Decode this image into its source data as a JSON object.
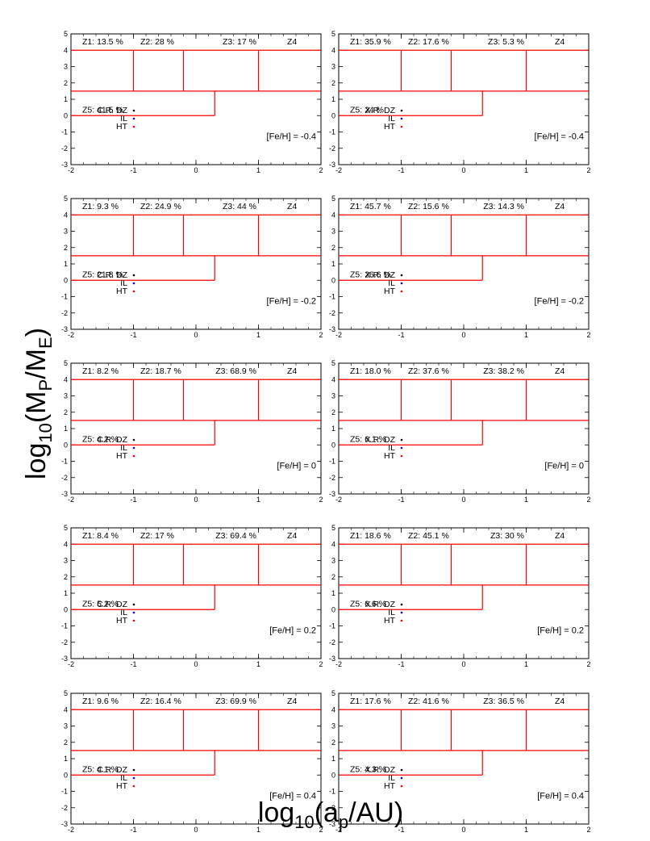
{
  "figure": {
    "xlabel": "log10(ap/AU)",
    "ylabel": "log10(MP/ME)",
    "xlabel_parts": {
      "base": "log",
      "sub1": "10",
      "mid": "(a",
      "sub2": "p",
      "tail": "/AU)"
    },
    "ylabel_parts": {
      "base": "log",
      "sub1": "10",
      "mid": "(M",
      "sub2": "P",
      "mid2": "/M",
      "sub3": "E",
      "tail": ")"
    }
  },
  "colors": {
    "dz": "#000000",
    "il": "#0000ff",
    "ht": "#ff0000",
    "bg": "#999999",
    "zone": "#ff0000"
  },
  "chart_data": {
    "type": "scatter",
    "xlim": [
      -2,
      2
    ],
    "ylim": [
      -3,
      5
    ],
    "xticks": [
      -2,
      -1,
      0,
      1,
      2
    ],
    "yticks": [
      -3,
      -2,
      -1,
      0,
      1,
      2,
      3,
      4,
      5
    ],
    "zone_lines": {
      "horizontal": [
        {
          "y": 4,
          "x": [
            -2,
            2
          ]
        },
        {
          "y": 1.5,
          "x": [
            -2,
            2
          ]
        },
        {
          "y": 0,
          "x": [
            -2,
            0.3
          ]
        }
      ],
      "vertical": [
        {
          "x": -1,
          "y": [
            1.5,
            4
          ]
        },
        {
          "x": -0.2,
          "y": [
            1.5,
            4
          ]
        },
        {
          "x": 1,
          "y": [
            1.5,
            4
          ]
        },
        {
          "x": 0.3,
          "y": [
            0,
            1.5
          ]
        }
      ]
    },
    "legend_labels": {
      "il": "IL",
      "ht": "HT"
    },
    "panels": [
      {
        "row": 0,
        "col": 0,
        "dz_label": "C.R. DZ",
        "feh": "[Fe/H] = -0.4",
        "z1": "Z1: 13.5 %",
        "z2": "Z2: 28 %",
        "z3": "Z3: 17 %",
        "z4": "Z4",
        "z5": "Z5: 41.5 %"
      },
      {
        "row": 0,
        "col": 1,
        "dz_label": "X.R. DZ",
        "feh": "[Fe/H] = -0.4",
        "z1": "Z1: 35.9 %",
        "z2": "Z2: 17.6 %",
        "z3": "Z3: 5.3 %",
        "z4": "Z4",
        "z5": "Z5: 24 %"
      },
      {
        "row": 1,
        "col": 0,
        "dz_label": "C.R. DZ",
        "feh": "[Fe/H] = -0.2",
        "z1": "Z1: 9.3 %",
        "z2": "Z2: 24.9 %",
        "z3": "Z3: 44 %",
        "z4": "Z4",
        "z5": "Z5: 21.8 %"
      },
      {
        "row": 1,
        "col": 1,
        "dz_label": "X.R. DZ",
        "feh": "[Fe/H] = -0.2",
        "z1": "Z1: 45.7 %",
        "z2": "Z2: 15.6 %",
        "z3": "Z3: 14.3 %",
        "z4": "Z4",
        "z5": "Z5: 26.6 %"
      },
      {
        "row": 2,
        "col": 0,
        "dz_label": "C.R. DZ",
        "feh": "[Fe/H] = 0",
        "z1": "Z1: 8.2 %",
        "z2": "Z2: 18.7 %",
        "z3": "Z3: 68.9 %",
        "z4": "Z4",
        "z5": "Z5: 4.2 %"
      },
      {
        "row": 2,
        "col": 1,
        "dz_label": "X.R. DZ",
        "feh": "[Fe/H] = 0",
        "z1": "Z1: 18.0 %",
        "z2": "Z2: 37.6 %",
        "z3": "Z3: 38.2 %",
        "z4": "Z4",
        "z5": "Z5: 6.1 %"
      },
      {
        "row": 3,
        "col": 0,
        "dz_label": "C.R. DZ",
        "feh": "[Fe/H] = 0.2",
        "z1": "Z1: 8.4 %",
        "z2": "Z2: 17 %",
        "z3": "Z3: 69.4 %",
        "z4": "Z4",
        "z5": "Z5: 5.2 %"
      },
      {
        "row": 3,
        "col": 1,
        "dz_label": "X.R. DZ",
        "feh": "[Fe/H] = 0.2",
        "z1": "Z1: 18.6 %",
        "z2": "Z2: 45.1 %",
        "z3": "Z3: 30 %",
        "z4": "Z4",
        "z5": "Z5: 6.6 %"
      },
      {
        "row": 4,
        "col": 0,
        "dz_label": "C.R. DZ",
        "feh": "[Fe/H] = 0.4",
        "z1": "Z1: 9.6 %",
        "z2": "Z2: 16.4 %",
        "z3": "Z3: 69.9 %",
        "z4": "Z4",
        "z5": "Z5: 4.1 %"
      },
      {
        "row": 4,
        "col": 1,
        "dz_label": "X.R. DZ",
        "feh": "[Fe/H] = 0.4",
        "z1": "Z1: 17.6 %",
        "z2": "Z2: 41.6 %",
        "z3": "Z3: 36.5 %",
        "z4": "Z4",
        "z5": "Z5: 4.3 %"
      }
    ]
  }
}
